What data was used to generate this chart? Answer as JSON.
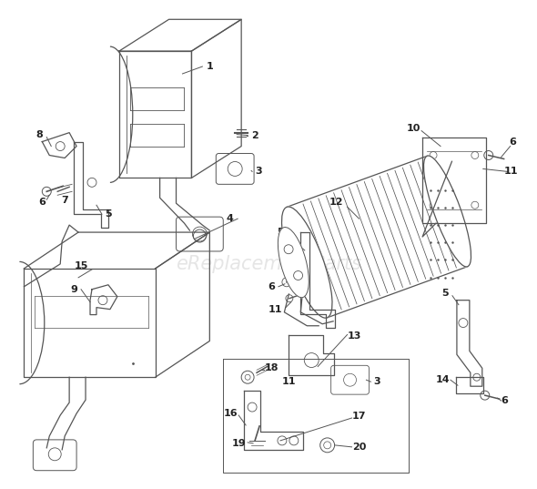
{
  "bg_color": "#ffffff",
  "line_color": "#555555",
  "text_color": "#222222",
  "watermark": "eReplacementParts",
  "watermark_color": "#cccccc",
  "figsize": [
    5.9,
    5.37
  ],
  "dpi": 100
}
